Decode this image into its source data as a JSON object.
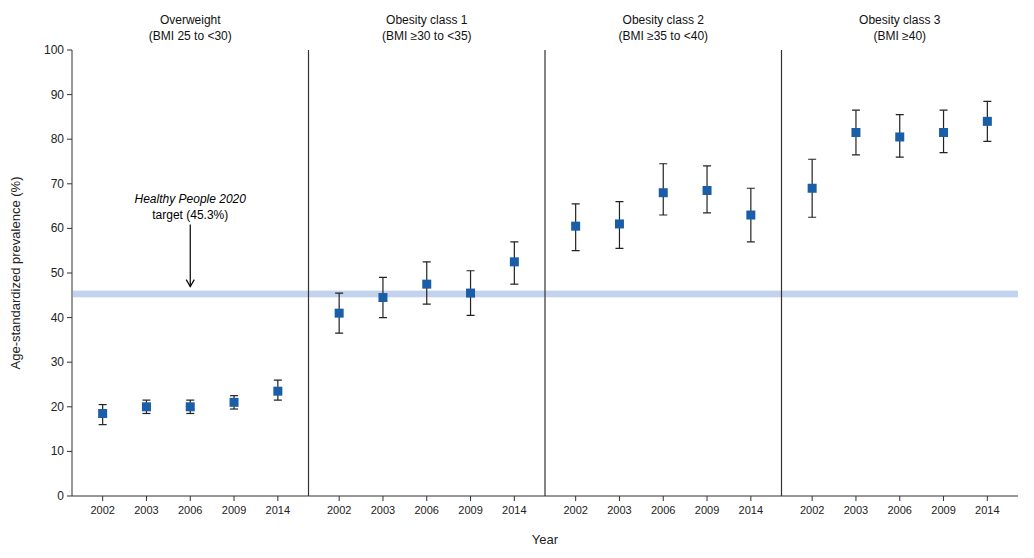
{
  "chart_data": {
    "type": "scatter",
    "x_label": "Year",
    "y_label": "Age-standardized prevalence (%)",
    "categories": [
      "2002",
      "2003",
      "2006",
      "2009",
      "2014"
    ],
    "ylim": [
      0,
      100
    ],
    "yticks": [
      0,
      10,
      20,
      30,
      40,
      50,
      60,
      70,
      80,
      90,
      100
    ],
    "grid": false,
    "marker": "square",
    "color": "#1a5ea8",
    "background_color": "#ffffff",
    "target_line": 45.3,
    "target_band_width": 1.5,
    "target_color": "#7b9ed9",
    "annotation_italic": "Healthy People 2020",
    "annotation_normal": "target (45.3%)",
    "panels": [
      {
        "title": "Overweight",
        "subtitle": "(BMI 25 to <30)",
        "values": [
          18.5,
          20.0,
          20.0,
          21.0,
          23.5
        ],
        "ci_low": [
          16.0,
          18.5,
          18.5,
          19.5,
          21.5
        ],
        "ci_high": [
          20.5,
          21.5,
          21.5,
          22.5,
          26.0
        ]
      },
      {
        "title": "Obesity class 1",
        "subtitle": "(BMI ≥30 to <35)",
        "values": [
          41.0,
          44.5,
          47.5,
          45.5,
          52.5
        ],
        "ci_low": [
          36.5,
          40.0,
          43.0,
          40.5,
          47.5
        ],
        "ci_high": [
          45.5,
          49.0,
          52.5,
          50.5,
          57.0
        ]
      },
      {
        "title": "Obesity class 2",
        "subtitle": "(BMI ≥35 to <40)",
        "values": [
          60.5,
          61.0,
          68.0,
          68.5,
          63.0
        ],
        "ci_low": [
          55.0,
          55.5,
          63.0,
          63.5,
          57.0
        ],
        "ci_high": [
          65.5,
          66.0,
          74.5,
          74.0,
          69.0
        ]
      },
      {
        "title": "Obesity class 3",
        "subtitle": "(BMI ≥40)",
        "values": [
          69.0,
          81.5,
          80.5,
          81.5,
          84.0
        ],
        "ci_low": [
          62.5,
          76.5,
          76.0,
          77.0,
          79.5
        ],
        "ci_high": [
          75.5,
          86.5,
          85.5,
          86.5,
          88.5
        ]
      }
    ]
  }
}
